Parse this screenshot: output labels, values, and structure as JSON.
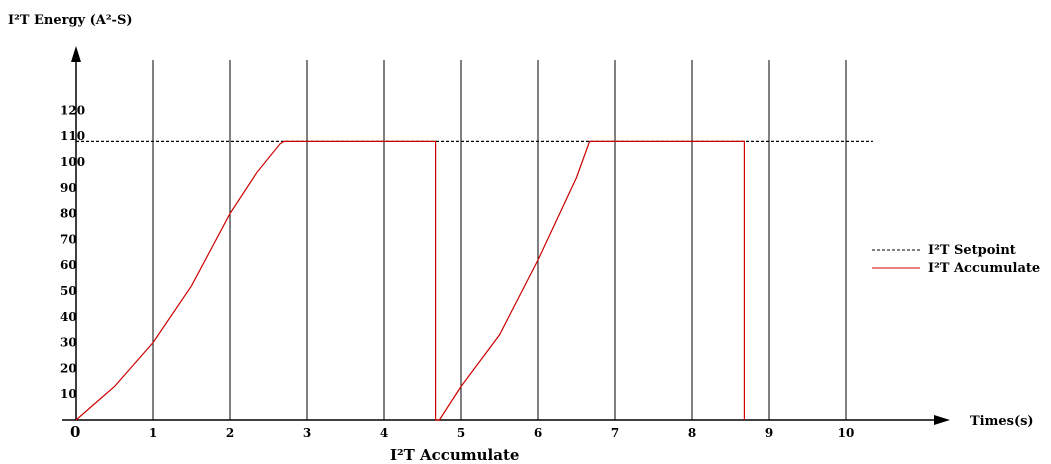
{
  "chart_data": {
    "type": "line",
    "ylabel": "I²T Energy (A²-S)",
    "xlabel": "Times(s)",
    "caption": "I²T Accumulate",
    "origin_label": "0",
    "x_ticks": [
      1,
      2,
      3,
      4,
      5,
      6,
      7,
      8,
      9,
      10
    ],
    "y_ticks": [
      10,
      20,
      30,
      40,
      50,
      60,
      70,
      80,
      90,
      100,
      110,
      120
    ],
    "xlim": [
      0,
      10.4
    ],
    "ylim": [
      0,
      120
    ],
    "grid": "vertical",
    "legend_position": "right",
    "series": [
      {
        "name": "I²T Setpoint",
        "style": "dashed",
        "color": "#000000",
        "points": [
          [
            0,
            108
          ],
          [
            10.35,
            108
          ]
        ]
      },
      {
        "name": "I²T Accumulate",
        "style": "solid",
        "color": "#cc0000",
        "points": [
          [
            0,
            0
          ],
          [
            0.5,
            13
          ],
          [
            1,
            30
          ],
          [
            1.5,
            52
          ],
          [
            2,
            80
          ],
          [
            2.35,
            96
          ],
          [
            2.65,
            107
          ],
          [
            2.7,
            108
          ],
          [
            4.67,
            108
          ],
          [
            4.67,
            0
          ],
          [
            4.72,
            0
          ],
          [
            5,
            13
          ],
          [
            5.5,
            33
          ],
          [
            6,
            62
          ],
          [
            6.5,
            94
          ],
          [
            6.67,
            108
          ],
          [
            8.68,
            108
          ],
          [
            8.68,
            0
          ]
        ]
      }
    ]
  }
}
